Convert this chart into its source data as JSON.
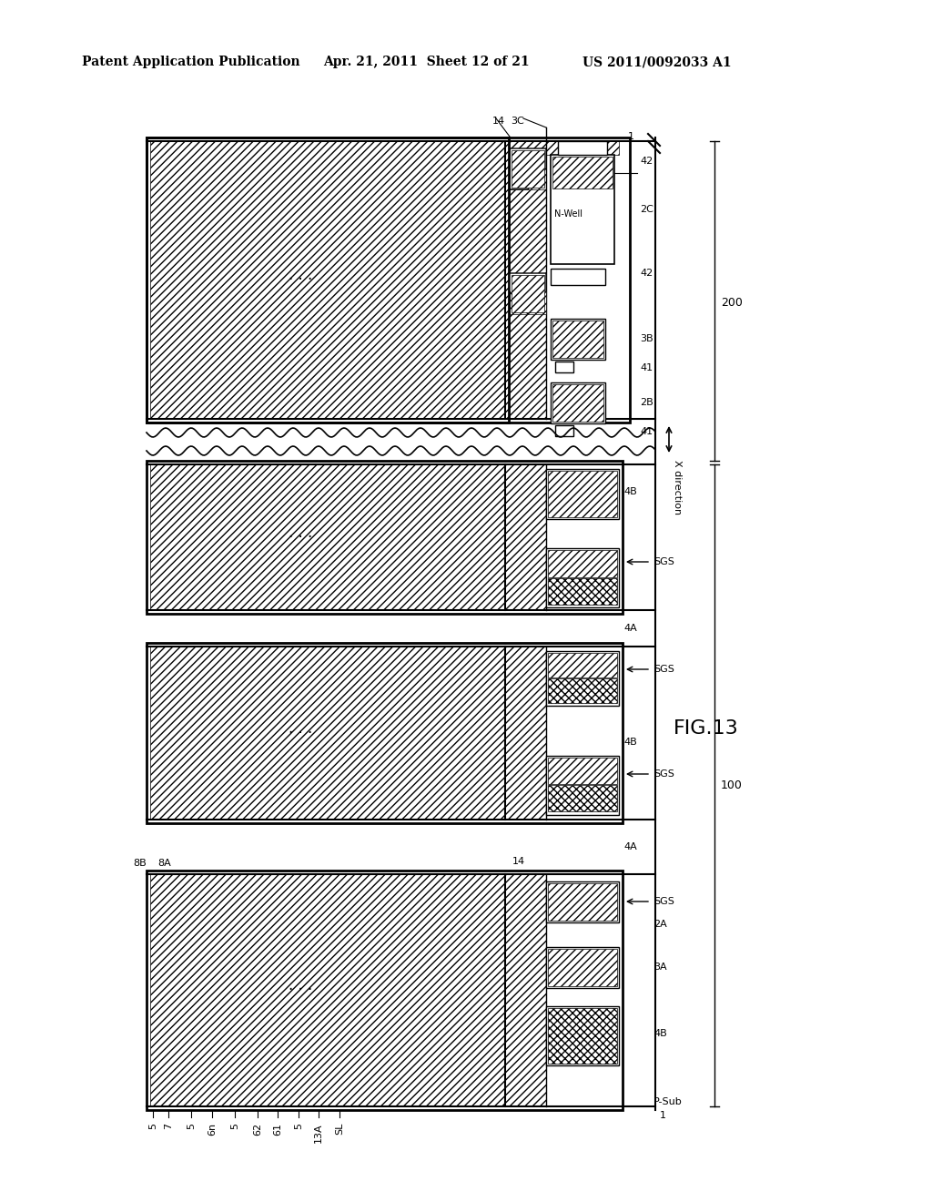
{
  "header_left": "Patent Application Publication",
  "header_mid": "Apr. 21, 2011  Sheet 12 of 21",
  "header_right": "US 2011/0092033 A1",
  "figure_label": "FIG.13",
  "bg_color": "#ffffff"
}
